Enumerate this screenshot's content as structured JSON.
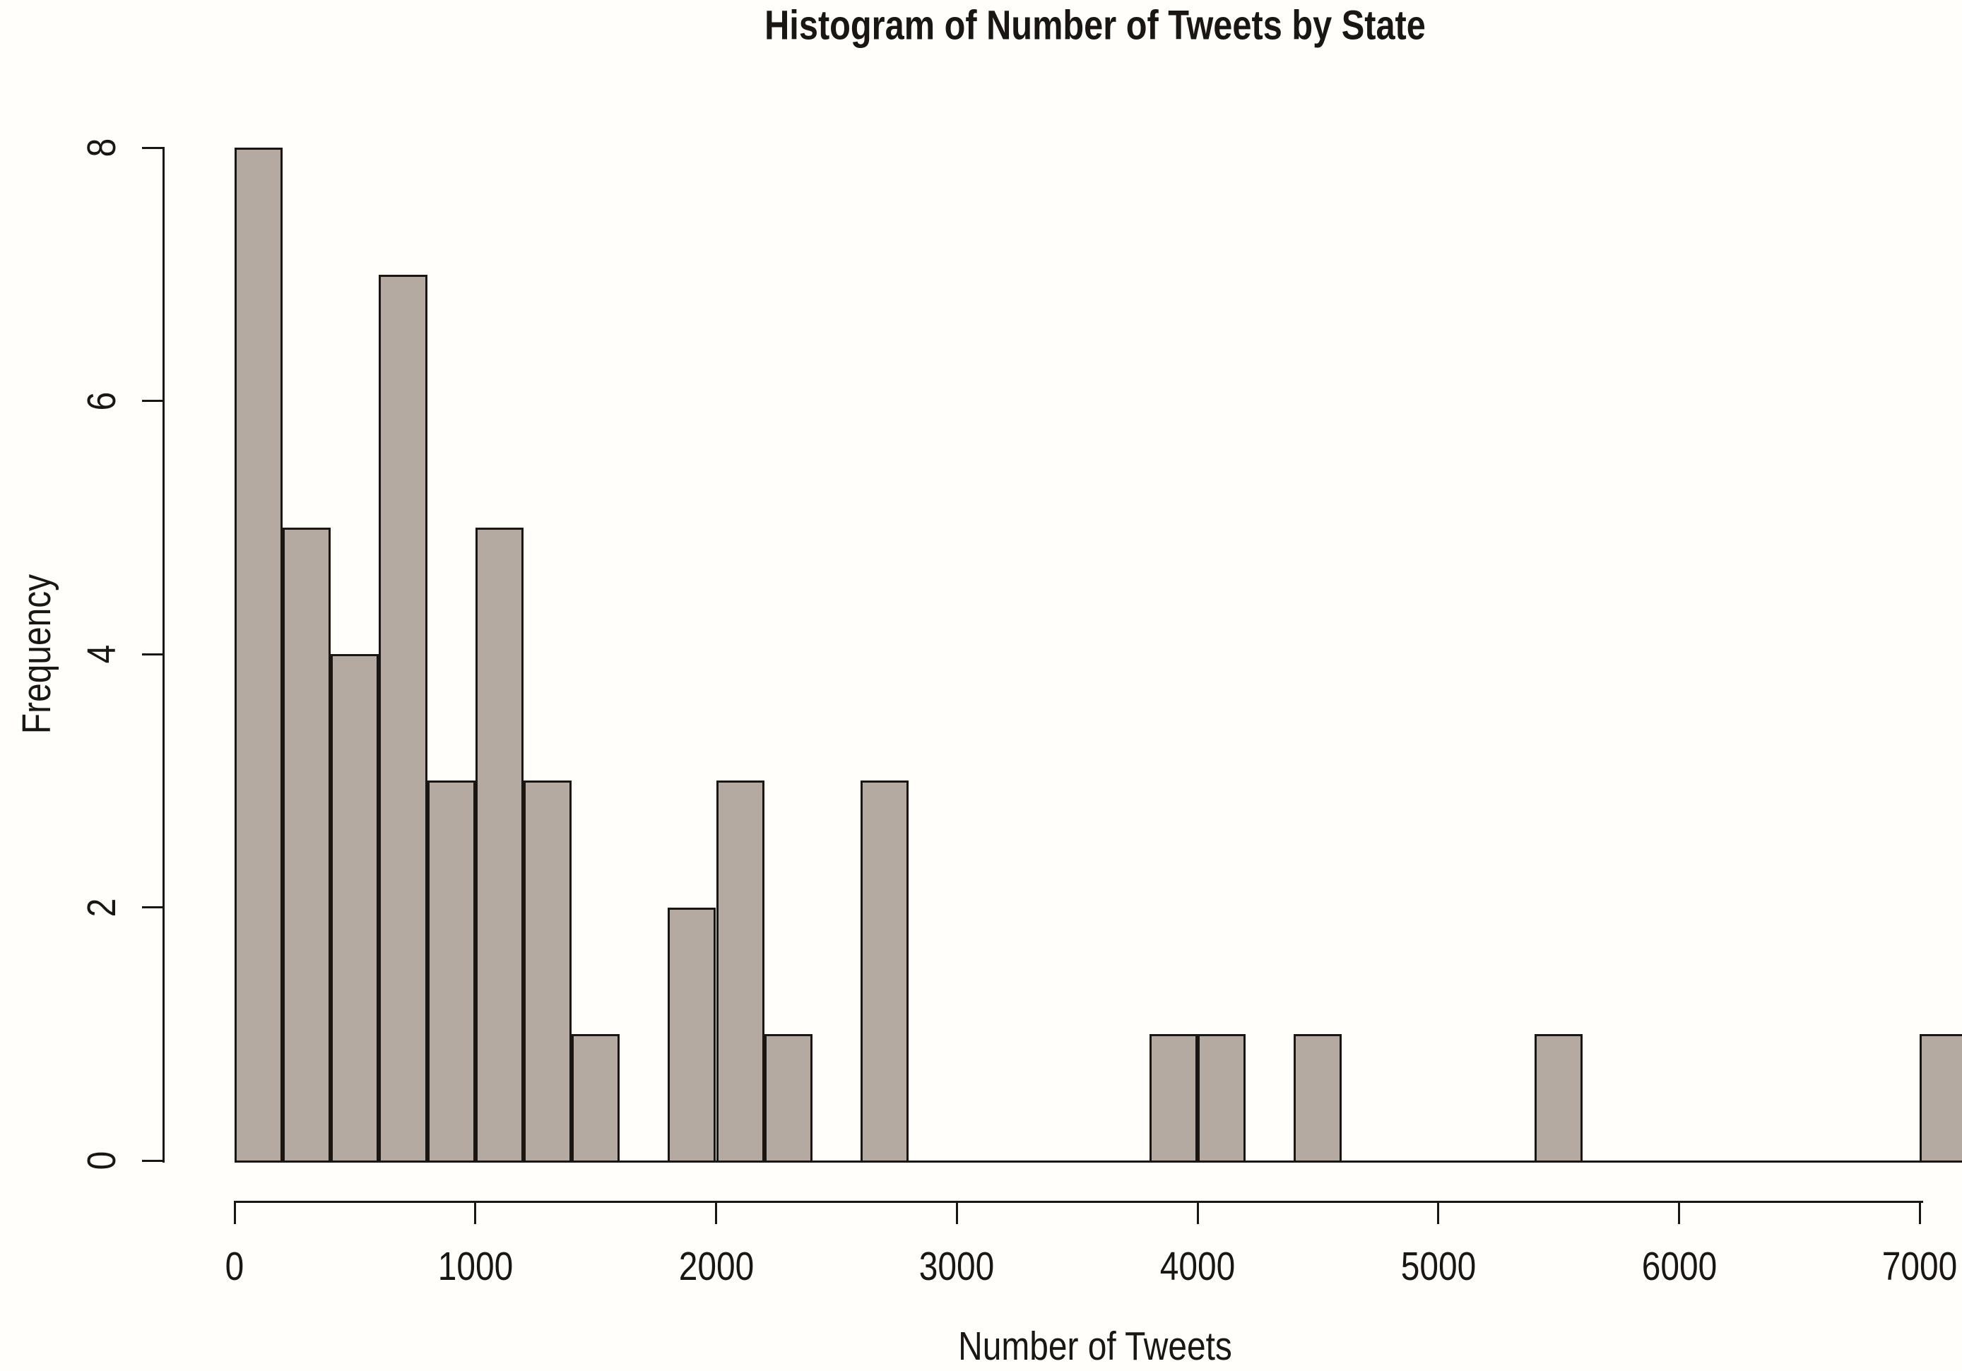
{
  "title": "Histogram of Number of Tweets by State",
  "chart_data": {
    "type": "histogram",
    "title": "Histogram of Number of Tweets by State",
    "xlabel": "Number of Tweets",
    "ylabel": "Frequency",
    "xlim": [
      0,
      7200
    ],
    "ylim": [
      0,
      8
    ],
    "bin_width": 200,
    "first_bin_start": 0,
    "counts": [
      8,
      5,
      4,
      7,
      3,
      5,
      3,
      1,
      0,
      2,
      3,
      1,
      0,
      3,
      0,
      0,
      0,
      0,
      0,
      1,
      1,
      0,
      1,
      0,
      0,
      0,
      0,
      1,
      0,
      0,
      0,
      0,
      0,
      0,
      0,
      1
    ],
    "x_ticks": [
      0,
      1000,
      2000,
      3000,
      4000,
      5000,
      6000,
      7000
    ],
    "y_ticks": [
      0,
      2,
      4,
      6,
      8
    ],
    "legend": "none",
    "grid": "off",
    "colors": {
      "bar_fill": "#b5aaa2",
      "bar_border": "#1a1613",
      "axis": "#1a1613",
      "background": "#fffefb"
    }
  }
}
